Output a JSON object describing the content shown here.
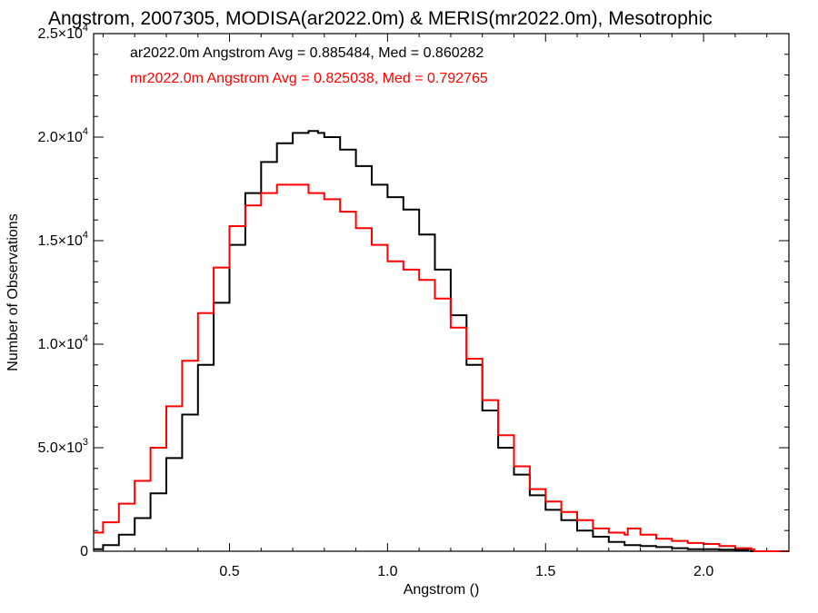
{
  "chart_data": {
    "type": "line",
    "step": true,
    "title": "Angstrom, 2007305, MODISA(ar2022.0m) & MERIS(mr2022.0m), Mesotrophic",
    "xlabel": "Angstrom ()",
    "ylabel": "Number of Observations",
    "xlim": [
      0.07,
      2.27
    ],
    "ylim": [
      0,
      25000
    ],
    "grid": false,
    "legend_position": "top-left",
    "x_ticks": [
      {
        "value": 0.5,
        "label": "0.5"
      },
      {
        "value": 1.0,
        "label": "1.0"
      },
      {
        "value": 1.5,
        "label": "1.5"
      },
      {
        "value": 2.0,
        "label": "2.0"
      }
    ],
    "y_ticks": [
      {
        "value": 0,
        "mantissa": "0",
        "exponent": ""
      },
      {
        "value": 5000,
        "mantissa": "5.0×10",
        "exponent": "3"
      },
      {
        "value": 10000,
        "mantissa": "1.0×10",
        "exponent": "4"
      },
      {
        "value": 15000,
        "mantissa": "1.5×10",
        "exponent": "4"
      },
      {
        "value": 20000,
        "mantissa": "2.0×10",
        "exponent": "4"
      },
      {
        "value": 25000,
        "mantissa": "2.5×10",
        "exponent": "4"
      }
    ],
    "series": [
      {
        "name": "ar2022.0m",
        "color": "#000000",
        "legend": "ar2022.0m Angstrom Avg = 0.885484, Med = 0.860282",
        "x": [
          0.07,
          0.1,
          0.15,
          0.2,
          0.25,
          0.3,
          0.35,
          0.4,
          0.45,
          0.5,
          0.55,
          0.6,
          0.65,
          0.7,
          0.75,
          0.78,
          0.8,
          0.85,
          0.9,
          0.95,
          1.0,
          1.05,
          1.1,
          1.15,
          1.2,
          1.25,
          1.3,
          1.35,
          1.4,
          1.45,
          1.5,
          1.55,
          1.6,
          1.65,
          1.7,
          1.75,
          1.8,
          1.85,
          1.9,
          1.95,
          2.0,
          2.05,
          2.1,
          2.14,
          2.15,
          2.27
        ],
        "y": [
          100,
          300,
          800,
          1600,
          2800,
          4500,
          6600,
          9000,
          12000,
          14800,
          17300,
          18800,
          19700,
          20200,
          20300,
          20200,
          20000,
          19400,
          18600,
          17700,
          17100,
          16500,
          15300,
          13600,
          11400,
          9000,
          6800,
          5000,
          3700,
          2700,
          2000,
          1500,
          1000,
          700,
          450,
          300,
          250,
          200,
          150,
          100,
          100,
          80,
          60,
          100,
          0,
          0
        ]
      },
      {
        "name": "mr2022.0m",
        "color": "#ff0000",
        "legend": "mr2022.0m Angstrom Avg = 0.825038, Med = 0.792765",
        "x": [
          0.07,
          0.1,
          0.15,
          0.2,
          0.25,
          0.3,
          0.35,
          0.4,
          0.45,
          0.5,
          0.55,
          0.6,
          0.65,
          0.7,
          0.75,
          0.8,
          0.85,
          0.9,
          0.95,
          1.0,
          1.05,
          1.1,
          1.15,
          1.2,
          1.25,
          1.3,
          1.35,
          1.4,
          1.45,
          1.5,
          1.55,
          1.6,
          1.65,
          1.7,
          1.75,
          1.76,
          1.8,
          1.85,
          1.9,
          1.95,
          2.0,
          2.05,
          2.1,
          2.15,
          2.16,
          2.27
        ],
        "y": [
          900,
          1400,
          2300,
          3400,
          5000,
          7000,
          9200,
          11500,
          13700,
          15700,
          16700,
          17300,
          17700,
          17700,
          17300,
          17000,
          16400,
          15600,
          14800,
          14000,
          13600,
          13100,
          12200,
          10800,
          9300,
          7300,
          5600,
          4100,
          3000,
          2400,
          1900,
          1500,
          1100,
          900,
          800,
          1100,
          800,
          600,
          500,
          400,
          350,
          250,
          150,
          100,
          0,
          0
        ]
      }
    ]
  }
}
